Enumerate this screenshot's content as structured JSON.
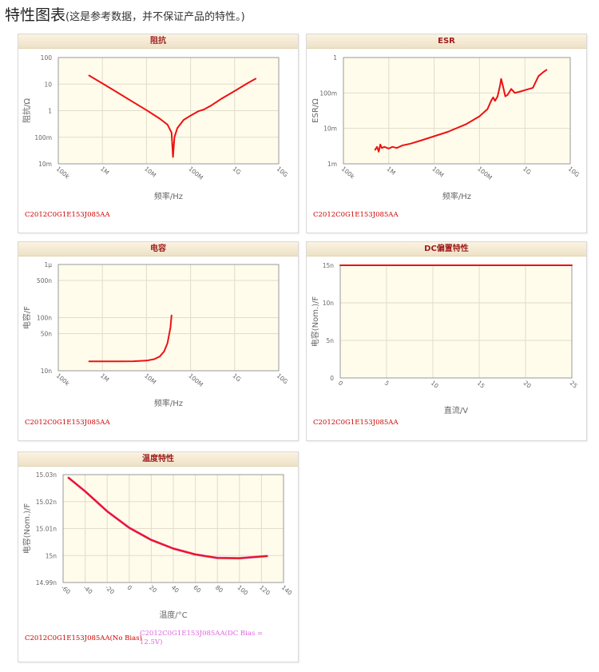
{
  "page": {
    "title_main": "特性图表",
    "title_sub": "(这是参考数据，并不保证产品的特性。)"
  },
  "colors": {
    "line": "#ee1111",
    "bias_line": "#dd77dd",
    "plot_bg": "#fffcec",
    "grid": "#e2dccb",
    "header_text": "#9e1b1b",
    "caption_red": "#cc0000",
    "caption_pink": "#dd66dd"
  },
  "chart_data": [
    {
      "id": "impedance",
      "type": "line",
      "title": "阻抗",
      "xlabel": "频率/Hz",
      "ylabel": "阻抗/Ω",
      "xscale": "log",
      "yscale": "log",
      "xlim": [
        100000,
        10000000000
      ],
      "ylim": [
        0.01,
        100
      ],
      "x_tick_values": [
        100000,
        1000000,
        10000000,
        100000000,
        1000000000,
        10000000000
      ],
      "x_tick_labels": [
        "100k",
        "1M",
        "10M",
        "100M",
        "1G",
        "10G"
      ],
      "y_tick_values": [
        0.01,
        0.1,
        1,
        10,
        100
      ],
      "y_tick_labels": [
        "10m",
        "100m",
        "1",
        "10",
        "100"
      ],
      "grid": true,
      "series": [
        {
          "name": "C2012C0G1E153J085AA",
          "color": "#ee1111",
          "points": [
            [
              500000,
              21
            ],
            [
              1000000,
              10.6
            ],
            [
              2000000,
              5.3
            ],
            [
              5000000,
              2.1
            ],
            [
              10000000,
              1.05
            ],
            [
              20000000,
              0.5
            ],
            [
              30000000,
              0.3
            ],
            [
              37000000,
              0.15
            ],
            [
              40000000,
              0.018
            ],
            [
              43000000,
              0.1
            ],
            [
              50000000,
              0.22
            ],
            [
              70000000,
              0.45
            ],
            [
              100000000,
              0.65
            ],
            [
              150000000,
              0.95
            ],
            [
              200000000,
              1.1
            ],
            [
              300000000,
              1.6
            ],
            [
              500000000,
              2.8
            ],
            [
              1000000000,
              5.5
            ],
            [
              2000000000,
              11
            ],
            [
              3000000000,
              16
            ]
          ]
        }
      ],
      "caption": "C2012C0G1E153J085AA"
    },
    {
      "id": "esr",
      "type": "line",
      "title": "ESR",
      "xlabel": "频率/Hz",
      "ylabel": "ESR/Ω",
      "xscale": "log",
      "yscale": "log",
      "xlim": [
        100000,
        10000000000
      ],
      "ylim": [
        0.001,
        1
      ],
      "x_tick_values": [
        100000,
        1000000,
        10000000,
        100000000,
        1000000000,
        10000000000
      ],
      "x_tick_labels": [
        "100k",
        "1M",
        "10M",
        "100M",
        "1G",
        "10G"
      ],
      "y_tick_values": [
        0.001,
        0.01,
        0.1,
        1
      ],
      "y_tick_labels": [
        "1m",
        "10m",
        "100m",
        "1"
      ],
      "grid": true,
      "series": [
        {
          "name": "C2012C0G1E153J085AA",
          "color": "#ee1111",
          "points": [
            [
              500000,
              0.0025
            ],
            [
              550000,
              0.003
            ],
            [
              600000,
              0.0022
            ],
            [
              650000,
              0.0035
            ],
            [
              700000,
              0.0028
            ],
            [
              800000,
              0.003
            ],
            [
              1000000,
              0.0027
            ],
            [
              1200000,
              0.003
            ],
            [
              1500000,
              0.0028
            ],
            [
              2000000,
              0.0033
            ],
            [
              3000000,
              0.0037
            ],
            [
              5000000,
              0.0045
            ],
            [
              10000000,
              0.006
            ],
            [
              20000000,
              0.008
            ],
            [
              50000000,
              0.013
            ],
            [
              100000000,
              0.022
            ],
            [
              150000000,
              0.035
            ],
            [
              180000000,
              0.06
            ],
            [
              200000000,
              0.075
            ],
            [
              220000000,
              0.06
            ],
            [
              250000000,
              0.08
            ],
            [
              280000000,
              0.15
            ],
            [
              300000000,
              0.25
            ],
            [
              330000000,
              0.15
            ],
            [
              370000000,
              0.08
            ],
            [
              420000000,
              0.09
            ],
            [
              500000000,
              0.13
            ],
            [
              600000000,
              0.1
            ],
            [
              800000000,
              0.11
            ],
            [
              1000000000,
              0.12
            ],
            [
              1500000000,
              0.14
            ],
            [
              2000000000,
              0.3
            ],
            [
              2500000000,
              0.38
            ],
            [
              3000000000,
              0.45
            ]
          ]
        }
      ],
      "caption": "C2012C0G1E153J085AA"
    },
    {
      "id": "capacitance",
      "type": "line",
      "title": "电容",
      "xlabel": "频率/Hz",
      "ylabel": "电容/F",
      "xscale": "log",
      "yscale": "log",
      "xlim": [
        100000,
        10000000000
      ],
      "ylim": [
        1e-08,
        1e-06
      ],
      "x_tick_values": [
        100000,
        1000000,
        10000000,
        100000000,
        1000000000,
        10000000000
      ],
      "x_tick_labels": [
        "100k",
        "1M",
        "10M",
        "100M",
        "1G",
        "10G"
      ],
      "y_tick_values": [
        1e-08,
        5e-08,
        1e-07,
        5e-07,
        1e-06
      ],
      "y_tick_labels": [
        "10n",
        "50n",
        "100n",
        "500n",
        "1μ"
      ],
      "grid": true,
      "series": [
        {
          "name": "C2012C0G1E153J085AA",
          "color": "#ee1111",
          "points": [
            [
              500000,
              1.5e-08
            ],
            [
              1000000,
              1.5e-08
            ],
            [
              2000000,
              1.5e-08
            ],
            [
              5000000,
              1.51e-08
            ],
            [
              10000000,
              1.55e-08
            ],
            [
              15000000,
              1.65e-08
            ],
            [
              20000000,
              1.85e-08
            ],
            [
              25000000,
              2.3e-08
            ],
            [
              30000000,
              3.3e-08
            ],
            [
              35000000,
              6.5e-08
            ],
            [
              37000000,
              1.1e-07
            ]
          ]
        }
      ],
      "caption": "C2012C0G1E153J085AA"
    },
    {
      "id": "dc_bias",
      "type": "line",
      "title": "DC偏置特性",
      "xlabel": "直流/V",
      "ylabel": "电容(Nom.)/F",
      "xscale": "linear",
      "yscale": "linear",
      "xlim": [
        0,
        25
      ],
      "ylim": [
        0,
        1.5e-08
      ],
      "x_tick_values": [
        0,
        5,
        10,
        15,
        20,
        25
      ],
      "x_tick_labels": [
        "0",
        "5",
        "10",
        "15",
        "20",
        "25"
      ],
      "y_tick_values": [
        0,
        5e-09,
        1e-08,
        1.5e-08
      ],
      "y_tick_labels": [
        "0",
        "5n",
        "10n",
        "15n"
      ],
      "grid": true,
      "series": [
        {
          "name": "C2012C0G1E153J085AA",
          "color": "#ee1111",
          "points": [
            [
              0,
              1.5e-08
            ],
            [
              25,
              1.5e-08
            ]
          ]
        }
      ],
      "caption": "C2012C0G1E153J085AA"
    },
    {
      "id": "temperature",
      "type": "line",
      "title": "温度特性",
      "xlabel": "温度/°C",
      "ylabel": "电容(Nom.)/F",
      "xscale": "linear",
      "yscale": "linear",
      "xlim": [
        -60,
        140
      ],
      "ylim": [
        1.499e-08,
        1.503e-08
      ],
      "x_tick_values": [
        -60,
        -40,
        -20,
        0,
        20,
        40,
        60,
        80,
        100,
        120,
        140
      ],
      "x_tick_labels": [
        "-60",
        "-40",
        "-20",
        "0",
        "20",
        "40",
        "60",
        "80",
        "100",
        "120",
        "140"
      ],
      "y_tick_values": [
        1.499e-08,
        1.5e-08,
        1.501e-08,
        1.502e-08,
        1.503e-08
      ],
      "y_tick_labels": [
        "14.99n",
        "15n",
        "15.01n",
        "15.02n",
        "15.03n"
      ],
      "grid": true,
      "series": [
        {
          "name": "C2012C0G1E153J085AA(No Bias)",
          "color": "#ee1111",
          "points": [
            [
              -55,
              1.50288e-08
            ],
            [
              -40,
              1.50238e-08
            ],
            [
              -20,
              1.50164e-08
            ],
            [
              0,
              1.50103e-08
            ],
            [
              20,
              1.50058e-08
            ],
            [
              40,
              1.50026e-08
            ],
            [
              60,
              1.50004e-08
            ],
            [
              80,
              1.49991e-08
            ],
            [
              100,
              1.4999e-08
            ],
            [
              125,
              1.49998e-08
            ]
          ]
        },
        {
          "name": "C2012C0G1E153J085AA(DC Bias = 12.5V)",
          "color": "#dd77dd",
          "points": [
            [
              -55,
              1.50288e-08
            ],
            [
              -40,
              1.50238e-08
            ],
            [
              -20,
              1.50164e-08
            ],
            [
              0,
              1.50103e-08
            ],
            [
              20,
              1.50058e-08
            ],
            [
              40,
              1.50026e-08
            ],
            [
              60,
              1.50004e-08
            ],
            [
              80,
              1.49991e-08
            ],
            [
              100,
              1.4999e-08
            ],
            [
              125,
              1.49998e-08
            ]
          ]
        }
      ],
      "caption": "C2012C0G1E153J085AA(No Bias)",
      "caption2": "C2012C0G1E153J085AA(DC Bias = 12.5V)"
    }
  ]
}
